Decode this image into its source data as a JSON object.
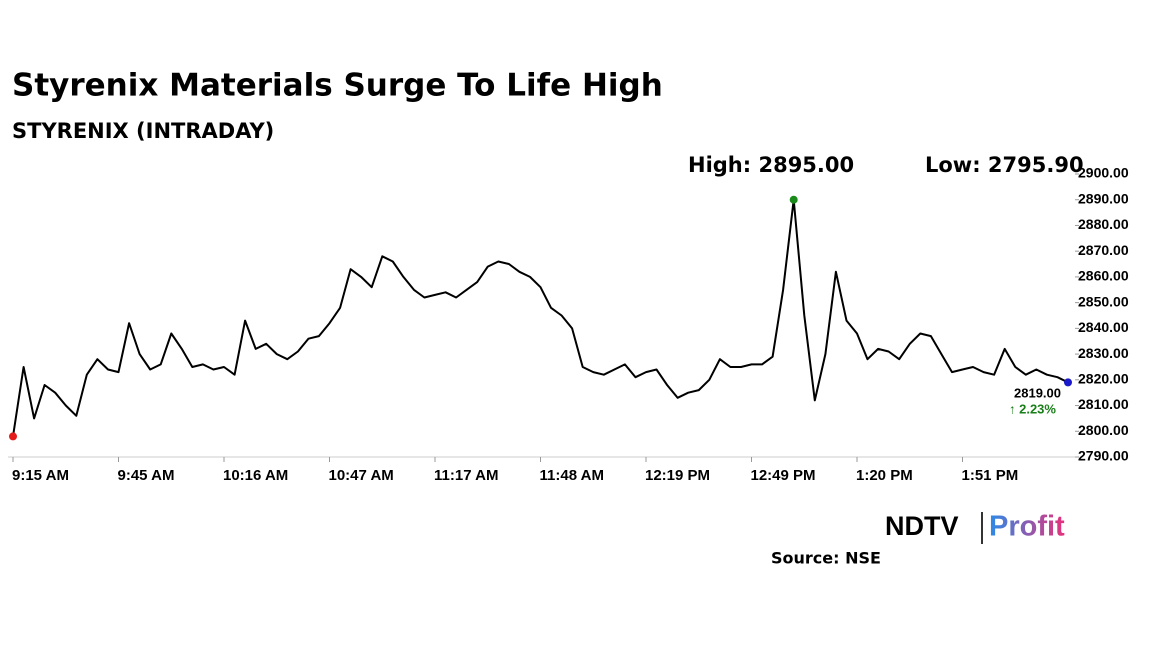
{
  "chart_data": {
    "type": "line",
    "title": "Styrenix Materials Surge To Life High",
    "subtitle": "STYRENIX (INTRADAY)",
    "high_label": "High: 2895.00",
    "low_label": "Low: 2795.90",
    "last_label": "2819.00",
    "change_label": "↑ 2.23%",
    "change_color": "#1a7f1a",
    "source": "Source: NSE",
    "logo": {
      "brand": "NDTV",
      "product": "Profit"
    },
    "color": "#000000",
    "markers": {
      "start": "#e31b1b",
      "high": "#1a8a1a",
      "end": "#1a1acc"
    },
    "categories": [
      "9:15 AM",
      null,
      null,
      null,
      null,
      null,
      null,
      null,
      null,
      null,
      "9:45 AM",
      null,
      null,
      null,
      null,
      null,
      null,
      null,
      null,
      null,
      "10:16 AM",
      null,
      null,
      null,
      null,
      null,
      null,
      null,
      null,
      null,
      "10:47 AM",
      null,
      null,
      null,
      null,
      null,
      null,
      null,
      null,
      null,
      "11:17 AM",
      null,
      null,
      null,
      null,
      null,
      null,
      null,
      null,
      null,
      "11:48 AM",
      null,
      null,
      null,
      null,
      null,
      null,
      null,
      null,
      null,
      "12:19 PM",
      null,
      null,
      null,
      null,
      null,
      null,
      null,
      null,
      null,
      "12:49 PM",
      null,
      null,
      null,
      null,
      null,
      null,
      null,
      null,
      null,
      "1:20 PM",
      null,
      null,
      null,
      null,
      null,
      null,
      null,
      null,
      null,
      "1:51 PM",
      null,
      null,
      null,
      null,
      null,
      null,
      null,
      null,
      null,
      null
    ],
    "values": [
      2798,
      2825,
      2805,
      2818,
      2815,
      2810,
      2806,
      2822,
      2828,
      2824,
      2823,
      2842,
      2830,
      2824,
      2826,
      2838,
      2832,
      2825,
      2826,
      2824,
      2825,
      2822,
      2843,
      2832,
      2834,
      2830,
      2828,
      2831,
      2836,
      2837,
      2842,
      2848,
      2863,
      2860,
      2856,
      2868,
      2866,
      2860,
      2855,
      2852,
      2853,
      2854,
      2852,
      2855,
      2858,
      2864,
      2866,
      2865,
      2862,
      2860,
      2856,
      2848,
      2845,
      2840,
      2825,
      2823,
      2822,
      2824,
      2826,
      2821,
      2823,
      2824,
      2818,
      2813,
      2815,
      2816,
      2820,
      2828,
      2825,
      2825,
      2826,
      2826,
      2829,
      2855,
      2890,
      2845,
      2812,
      2830,
      2862,
      2843,
      2838,
      2828,
      2832,
      2831,
      2828,
      2834,
      2838,
      2837,
      2830,
      2823,
      2824,
      2825,
      2823,
      2822,
      2832,
      2825,
      2822,
      2824,
      2822,
      2821,
      2819
    ],
    "ylim": [
      2790,
      2900
    ],
    "yticks": [
      {
        "value": 2790,
        "label": "2790.00"
      },
      {
        "value": 2800,
        "label": "2800.00"
      },
      {
        "value": 2810,
        "label": "2810.00"
      },
      {
        "value": 2820,
        "label": "2820.00"
      },
      {
        "value": 2830,
        "label": "2830.00"
      },
      {
        "value": 2840,
        "label": "2840.00"
      },
      {
        "value": 2850,
        "label": "2850.00"
      },
      {
        "value": 2860,
        "label": "2860.00"
      },
      {
        "value": 2870,
        "label": "2870.00"
      },
      {
        "value": 2880,
        "label": "2880.00"
      },
      {
        "value": 2890,
        "label": "2890.00"
      },
      {
        "value": 2900,
        "label": "2900.00"
      }
    ],
    "grid": false
  }
}
